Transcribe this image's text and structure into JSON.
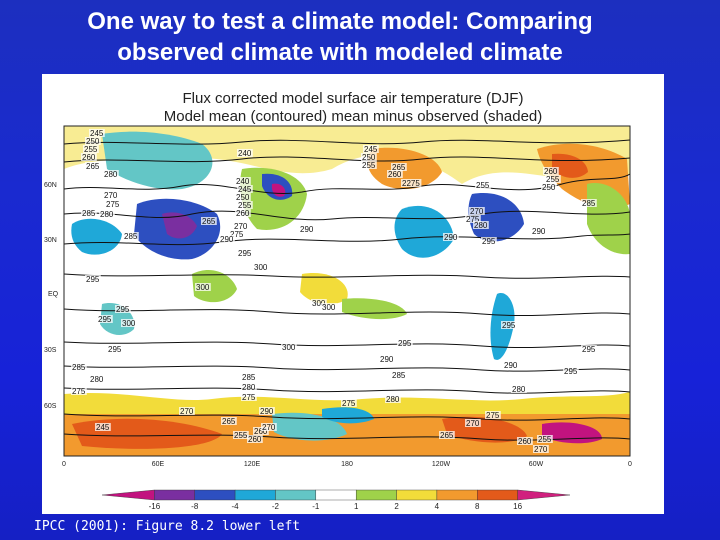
{
  "slide": {
    "title_line1": "One way to test a climate model: Comparing",
    "title_line2": "observed climate with modeled climate",
    "caption": "IPCC (2001): Figure 8.2 lower left"
  },
  "figure": {
    "title_line1": "Flux corrected model surface air temperature (DJF)",
    "title_line2": "Model mean (contoured)  mean minus observed (shaded)",
    "lat_labels": [
      "60N",
      "30N",
      "EQ",
      "30S",
      "60S"
    ],
    "lon_labels": [
      "0",
      "60E",
      "120E",
      "180",
      "120W",
      "60W",
      "0"
    ],
    "colorbar": {
      "labels": [
        "-16",
        "-8",
        "-4",
        "-2",
        "-1",
        "1",
        "2",
        "4",
        "8",
        "16"
      ],
      "colors": [
        "#c2137f",
        "#7a2fa0",
        "#2d4fc0",
        "#1fa8d8",
        "#63c6c6",
        "#ffffff",
        "#9fd24a",
        "#f2dc3a",
        "#f29a2e",
        "#e35a1a",
        "#d0207e"
      ]
    },
    "contour_labels": [
      {
        "t": "245"
      },
      {
        "t": "250"
      },
      {
        "t": "255"
      },
      {
        "t": "260"
      },
      {
        "t": "265"
      },
      {
        "t": "280"
      },
      {
        "t": "270"
      },
      {
        "t": "275"
      },
      {
        "t": "285"
      },
      {
        "t": "280"
      },
      {
        "t": "240"
      },
      {
        "t": "240"
      },
      {
        "t": "245"
      },
      {
        "t": "250"
      },
      {
        "t": "255"
      },
      {
        "t": "260"
      },
      {
        "t": "265"
      },
      {
        "t": "270"
      },
      {
        "t": "275"
      },
      {
        "t": "245"
      },
      {
        "t": "250"
      },
      {
        "t": "255"
      },
      {
        "t": "265"
      },
      {
        "t": "260"
      },
      {
        "t": "2275"
      },
      {
        "t": "255"
      },
      {
        "t": "260"
      },
      {
        "t": "255"
      },
      {
        "t": "250"
      },
      {
        "t": "285"
      },
      {
        "t": "270"
      },
      {
        "t": "275"
      },
      {
        "t": "280"
      },
      {
        "t": "290"
      },
      {
        "t": "285"
      },
      {
        "t": "290"
      },
      {
        "t": "295"
      },
      {
        "t": "290"
      },
      {
        "t": "290"
      },
      {
        "t": "295"
      },
      {
        "t": "300"
      },
      {
        "t": "295"
      },
      {
        "t": "300"
      },
      {
        "t": "300"
      },
      {
        "t": "295"
      },
      {
        "t": "295"
      },
      {
        "t": "300"
      },
      {
        "t": "300"
      },
      {
        "t": "295"
      },
      {
        "t": "300"
      },
      {
        "t": "295"
      },
      {
        "t": "295"
      },
      {
        "t": "295"
      },
      {
        "t": "290"
      },
      {
        "t": "290"
      },
      {
        "t": "285"
      },
      {
        "t": "285"
      },
      {
        "t": "280"
      },
      {
        "t": "280"
      },
      {
        "t": "275"
      },
      {
        "t": "275"
      },
      {
        "t": "270"
      },
      {
        "t": "265"
      },
      {
        "t": "260"
      },
      {
        "t": "285"
      },
      {
        "t": "280"
      },
      {
        "t": "280"
      },
      {
        "t": "275"
      },
      {
        "t": "275"
      },
      {
        "t": "270"
      },
      {
        "t": "270"
      },
      {
        "t": "245"
      },
      {
        "t": "255"
      },
      {
        "t": "260"
      },
      {
        "t": "265"
      },
      {
        "t": "255"
      },
      {
        "t": "260"
      },
      {
        "t": "270"
      },
      {
        "t": "290"
      },
      {
        "t": "295"
      }
    ]
  }
}
